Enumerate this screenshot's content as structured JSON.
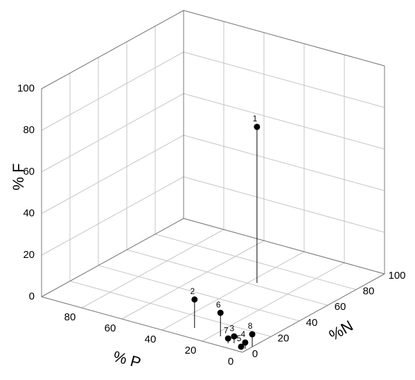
{
  "chart_data": {
    "type": "scatter3d",
    "x_label": "% P",
    "y_label": "%N",
    "z_label": "% F",
    "xlim": [
      0,
      100
    ],
    "ylim": [
      0,
      100
    ],
    "zlim": [
      0,
      100
    ],
    "xticks": [
      0,
      20,
      40,
      60,
      80
    ],
    "yticks": [
      0,
      20,
      40,
      60,
      80,
      100
    ],
    "zticks": [
      0,
      20,
      40,
      60,
      80,
      100
    ],
    "grid": true,
    "color": "#000000",
    "points": [
      {
        "label": "1",
        "x": 36.9,
        "y": 62.4,
        "z": 75
      },
      {
        "label": "2",
        "x": 30.5,
        "y": 9.4,
        "z": 13.7
      },
      {
        "label": "3",
        "x": 8.2,
        "y": 5.7,
        "z": 3.3
      },
      {
        "label": "4",
        "x": 1.2,
        "y": 3.6,
        "z": 3
      },
      {
        "label": "5",
        "x": 3.8,
        "y": 4.4,
        "z": 0
      },
      {
        "label": "6",
        "x": 16.9,
        "y": 8.4,
        "z": 11.3
      },
      {
        "label": "7",
        "x": 10.2,
        "y": 4.3,
        "z": 2.3
      },
      {
        "label": "8",
        "x": 0.1,
        "y": 7,
        "z": 6
      }
    ]
  }
}
